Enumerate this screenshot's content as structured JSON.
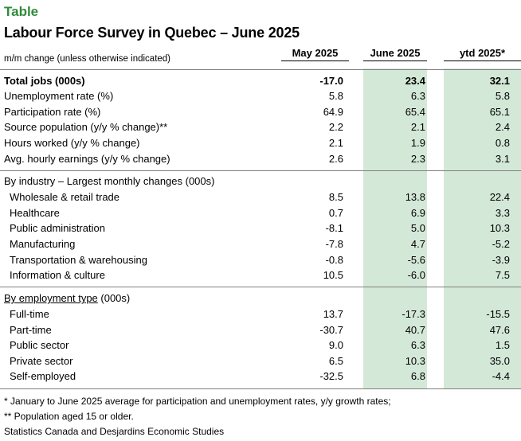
{
  "label": "Table",
  "title": "Labour Force Survey in Quebec – June 2025",
  "subheading": "m/m change (unless otherwise indicated)",
  "columns": [
    "May 2025",
    "June 2025",
    "ytd 2025*"
  ],
  "summary_rows": [
    {
      "label": "Total jobs (000s)",
      "values": [
        "-17.0",
        "23.4",
        "32.1"
      ]
    },
    {
      "label": "Unemployment rate (%)",
      "values": [
        "5.8",
        "6.3",
        "5.8"
      ]
    },
    {
      "label": "Participation rate (%)",
      "values": [
        "64.9",
        "65.4",
        "65.1"
      ]
    },
    {
      "label": "Source population (y/y % change)**",
      "values": [
        "2.2",
        "2.1",
        "2.4"
      ]
    },
    {
      "label": "Hours worked (y/y % change)",
      "values": [
        "2.1",
        "1.9",
        "0.8"
      ]
    },
    {
      "label": "Avg. hourly earnings (y/y % change)",
      "values": [
        "2.6",
        "2.3",
        "3.1"
      ]
    }
  ],
  "industry_section": {
    "title": "By industry – Largest monthly changes (000s)",
    "rows": [
      {
        "label": "Wholesale & retail trade",
        "values": [
          "8.5",
          "13.8",
          "22.4"
        ]
      },
      {
        "label": "Healthcare",
        "values": [
          "0.7",
          "6.9",
          "3.3"
        ]
      },
      {
        "label": "Public administration",
        "values": [
          "-8.1",
          "5.0",
          "10.3"
        ]
      },
      {
        "label": "Manufacturing",
        "values": [
          "-7.8",
          "4.7",
          "-5.2"
        ]
      },
      {
        "label": "Transportation & warehousing",
        "values": [
          "-0.8",
          "-5.6",
          "-3.9"
        ]
      },
      {
        "label": "Information & culture",
        "values": [
          "10.5",
          "-6.0",
          "7.5"
        ]
      }
    ]
  },
  "employment_section": {
    "title_underlined": "By employment type",
    "title_rest": " (000s)",
    "rows": [
      {
        "label": "Full-time",
        "values": [
          "13.7",
          "-17.3",
          "-15.5"
        ]
      },
      {
        "label": "Part-time",
        "values": [
          "-30.7",
          "40.7",
          "47.6"
        ]
      },
      {
        "label": "Public sector",
        "values": [
          "9.0",
          "6.3",
          "1.5"
        ]
      },
      {
        "label": "Private sector",
        "values": [
          "6.5",
          "10.3",
          "35.0"
        ]
      },
      {
        "label": "Self-employed",
        "values": [
          "-32.5",
          "6.8",
          "-4.4"
        ]
      }
    ]
  },
  "notes": [
    "* January to June 2025 average for participation and unemployment rates, y/y growth rates;",
    "** Population aged 15 or older.",
    "Statistics Canada and Desjardins Economic Studies"
  ],
  "colors": {
    "label_green": "#2e8b3a",
    "column_shade": "#d4e8d8"
  }
}
